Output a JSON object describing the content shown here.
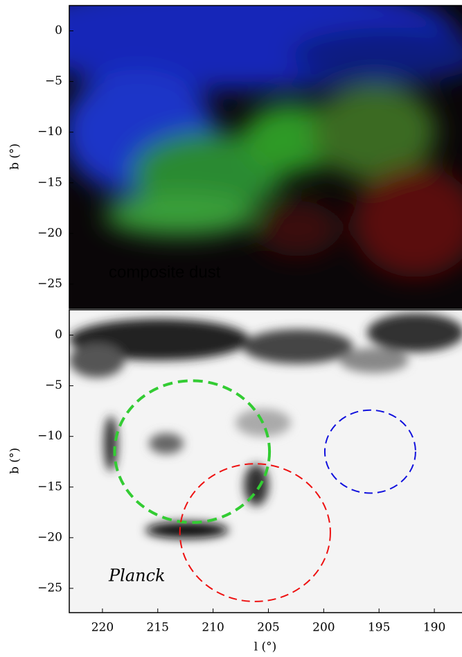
{
  "chart_data": [
    {
      "type": "image",
      "annotation": "composite dust",
      "annotation_color": "#ffffff",
      "ylabel": "b (°)",
      "xlim": [
        223,
        187.5
      ],
      "ylim": [
        -27.4,
        2.5
      ],
      "yticks": [
        0,
        {
          "value": -5,
          "label": "−5"
        },
        {
          "value": -10,
          "label": "−10"
        },
        {
          "value": -15,
          "label": "−15"
        },
        {
          "value": -20,
          "label": "−20"
        },
        {
          "value": -25,
          "label": "−25"
        }
      ],
      "circles": []
    },
    {
      "type": "image",
      "annotation": "Planck",
      "annotation_color": "#000000",
      "ylabel": "b (°)",
      "xlabel": "l (°)",
      "xlim": [
        223,
        187.5
      ],
      "ylim": [
        -27.4,
        2.5
      ],
      "xticks": [
        220,
        215,
        210,
        205,
        200,
        195,
        190
      ],
      "yticks": [
        0,
        {
          "value": -5,
          "label": "−5"
        },
        {
          "value": -10,
          "label": "−10"
        },
        {
          "value": -15,
          "label": "−15"
        },
        {
          "value": -20,
          "label": "−20"
        },
        {
          "value": -25,
          "label": "−25"
        }
      ],
      "circles": [
        {
          "l": 211.9,
          "b": -11.5,
          "r": 7,
          "color": "#33cc33"
        },
        {
          "l": 206.2,
          "b": -19.5,
          "r": 6.8,
          "color": "#ee1111"
        },
        {
          "l": 195.8,
          "b": -11.5,
          "r": 4.1,
          "color": "#1111dd"
        }
      ]
    }
  ]
}
